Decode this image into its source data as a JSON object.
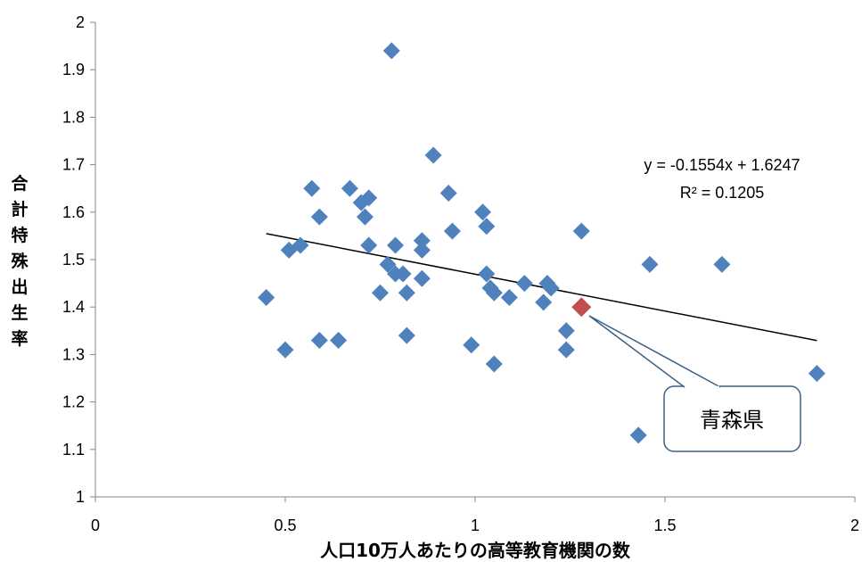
{
  "chart_data": {
    "type": "scatter",
    "title": "",
    "xlabel": "人口10万人あたりの高等教育機関の数",
    "ylabel": "合計特殊出生率",
    "xlim": [
      0,
      2
    ],
    "ylim": [
      1,
      2
    ],
    "x_ticks": [
      "0",
      "0.5",
      "1",
      "1.5",
      "2"
    ],
    "y_ticks": [
      "1",
      "1.1",
      "1.2",
      "1.3",
      "1.4",
      "1.5",
      "1.6",
      "1.7",
      "1.8",
      "1.9",
      "2"
    ],
    "grid": false,
    "legend": "none",
    "marker_color": "#4f81bd",
    "highlight_color": "#c0504d",
    "series": [
      {
        "points": [
          [
            0.45,
            1.42
          ],
          [
            0.5,
            1.31
          ],
          [
            0.51,
            1.52
          ],
          [
            0.54,
            1.53
          ],
          [
            0.57,
            1.65
          ],
          [
            0.59,
            1.59
          ],
          [
            0.59,
            1.33
          ],
          [
            0.64,
            1.33
          ],
          [
            0.67,
            1.65
          ],
          [
            0.7,
            1.62
          ],
          [
            0.71,
            1.59
          ],
          [
            0.72,
            1.63
          ],
          [
            0.72,
            1.53
          ],
          [
            0.75,
            1.43
          ],
          [
            0.77,
            1.49
          ],
          [
            0.78,
            1.94
          ],
          [
            0.79,
            1.53
          ],
          [
            0.79,
            1.47
          ],
          [
            0.81,
            1.47
          ],
          [
            0.82,
            1.43
          ],
          [
            0.82,
            1.34
          ],
          [
            0.86,
            1.46
          ],
          [
            0.86,
            1.54
          ],
          [
            0.86,
            1.52
          ],
          [
            0.89,
            1.72
          ],
          [
            0.93,
            1.64
          ],
          [
            0.94,
            1.56
          ],
          [
            0.99,
            1.32
          ],
          [
            1.02,
            1.6
          ],
          [
            1.03,
            1.47
          ],
          [
            1.03,
            1.57
          ],
          [
            1.04,
            1.44
          ],
          [
            1.05,
            1.43
          ],
          [
            1.05,
            1.28
          ],
          [
            1.09,
            1.42
          ],
          [
            1.13,
            1.45
          ],
          [
            1.18,
            1.41
          ],
          [
            1.19,
            1.45
          ],
          [
            1.2,
            1.44
          ],
          [
            1.24,
            1.35
          ],
          [
            1.24,
            1.31
          ],
          [
            1.28,
            1.56
          ],
          [
            1.43,
            1.13
          ],
          [
            1.46,
            1.49
          ],
          [
            1.65,
            1.49
          ],
          [
            1.9,
            1.26
          ]
        ]
      }
    ],
    "highlight_point": [
      1.28,
      1.4
    ],
    "trendline": {
      "slope": -0.1554,
      "intercept": 1.6247,
      "x_range": [
        0.45,
        1.9
      ],
      "equation_text": "y = -0.1554x + 1.6247",
      "r2_text": "R² = 0.1205"
    },
    "callout": {
      "text": "青森県"
    }
  }
}
